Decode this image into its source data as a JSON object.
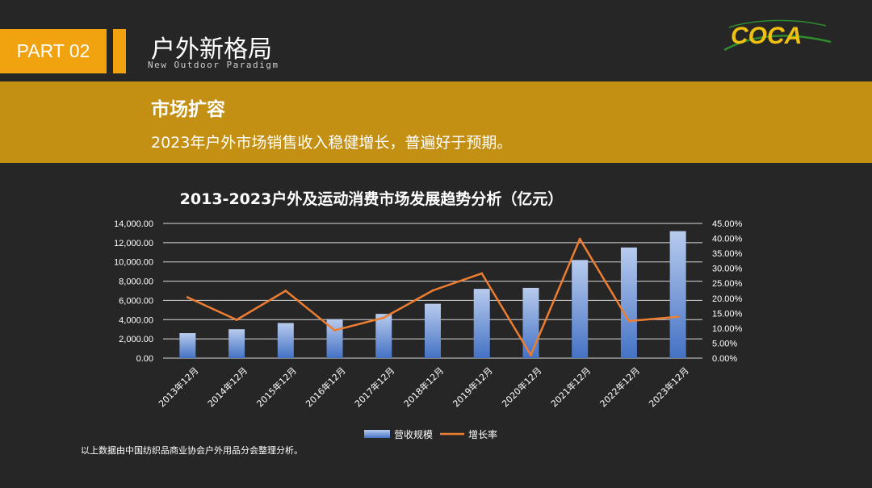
{
  "header": {
    "part_label": "PART 02",
    "title": "户外新格局",
    "subtitle_en": "New Outdoor Paradigm",
    "logo_text": "COCA"
  },
  "band": {
    "heading": "市场扩容",
    "text": "2023年户外市场销售收入稳健增长，普遍好于预期。"
  },
  "footer": {
    "source": "以上数据由中国纺织品商业协会户外用品分会整理分析。"
  },
  "colors": {
    "accent": "#f0a20f",
    "band": "#c49013",
    "bar": "#4472c4",
    "line": "#ed7d31",
    "background": "#262626"
  },
  "chart_data": {
    "type": "bar",
    "title": "2013-2023户外及运动消费市场发展趋势分析（亿元）",
    "categories": [
      "2013年12月",
      "2014年12月",
      "2015年12月",
      "2016年12月",
      "2017年12月",
      "2018年12月",
      "2019年12月",
      "2020年12月",
      "2021年12月",
      "2022年12月",
      "2023年12月"
    ],
    "series": [
      {
        "name": "营收规模",
        "type": "bar",
        "axis": "left",
        "values": [
          2600,
          3000,
          3650,
          4050,
          4600,
          5650,
          7200,
          7300,
          10200,
          11500,
          13200
        ]
      },
      {
        "name": "增长率",
        "type": "line",
        "axis": "right",
        "values": [
          20.3,
          12.8,
          22.5,
          9.3,
          13.5,
          22.6,
          28.3,
          1.0,
          39.8,
          12.4,
          13.8
        ]
      }
    ],
    "ylim_left": [
      0,
      14000
    ],
    "ylim_right": [
      0,
      45
    ],
    "left_ticks": [
      "0.00",
      "2,000.00",
      "4,000.00",
      "6,000.00",
      "8,000.00",
      "10,000.00",
      "12,000.00",
      "14,000.00"
    ],
    "right_ticks": [
      "0.00%",
      "5.00%",
      "10.00%",
      "15.00%",
      "20.00%",
      "25.00%",
      "30.00%",
      "35.00%",
      "40.00%",
      "45.00%"
    ],
    "grid": true,
    "legend": "bottom"
  }
}
